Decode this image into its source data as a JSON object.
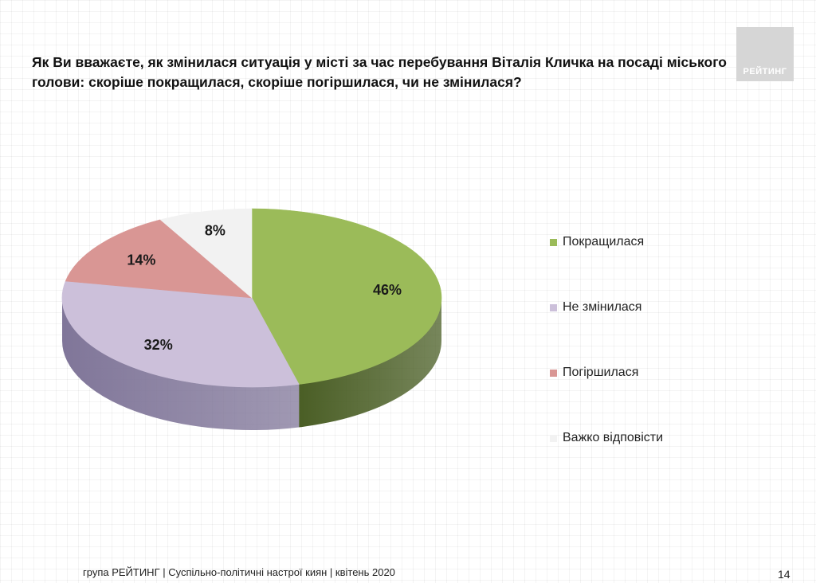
{
  "title": "Як Ви вважаєте, як змінилася ситуація у місті за час перебування Віталія Кличка на посаді міського голови: скоріше покращилася, скоріше погіршилася, чи не змінилася?",
  "logo_text": "РЕЙТИНГ",
  "footer": "група РЕЙТИНГ | Суспільно-політичні настрої киян | квітень  2020",
  "page_number": "14",
  "chart_data": {
    "type": "pie",
    "style": "3d",
    "legend_position": "right",
    "slices": [
      {
        "label": "Покращилася",
        "value": 46,
        "display": "46%",
        "color": "#9bbb59",
        "side_color": "#4a5e25"
      },
      {
        "label": "Не змінилася",
        "value": 32,
        "display": "32%",
        "color": "#ccc0da",
        "side_color": "#807699"
      },
      {
        "label": "Погіршилася",
        "value": 14,
        "display": "14%",
        "color": "#d99694",
        "side_color": "#8e4f4c"
      },
      {
        "label": "Важко відповісти",
        "value": 8,
        "display": "8%",
        "color": "#f2f2f2",
        "side_color": "#bdbdbd"
      }
    ]
  }
}
